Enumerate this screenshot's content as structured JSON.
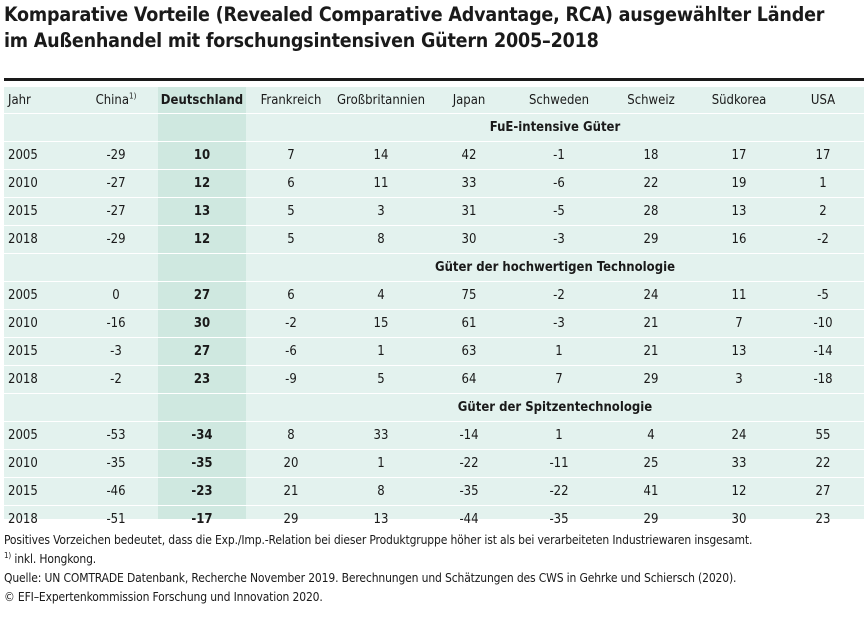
{
  "title": {
    "line1": "Komparative Vorteile (Revealed Comparative Advantage, RCA) ausgewählter Länder",
    "line2": "im Außenhandel mit forschungsintensiven Gütern 2005–2018"
  },
  "table": {
    "headers": {
      "year": "Jahr",
      "china": "China",
      "china_note": "1)",
      "germany": "Deutschland",
      "france": "Frankreich",
      "uk": "Großbritannien",
      "japan": "Japan",
      "sweden": "Schweden",
      "switzerland": "Schweiz",
      "korea": "Südkorea",
      "usa": "USA"
    },
    "sections": [
      {
        "label": "FuE-intensive Güter",
        "rows": [
          {
            "year": "2005",
            "china": "-29",
            "germany": "10",
            "france": "7",
            "uk": "14",
            "japan": "42",
            "sweden": "-1",
            "switzerland": "18",
            "korea": "17",
            "usa": "17"
          },
          {
            "year": "2010",
            "china": "-27",
            "germany": "12",
            "france": "6",
            "uk": "11",
            "japan": "33",
            "sweden": "-6",
            "switzerland": "22",
            "korea": "19",
            "usa": "1"
          },
          {
            "year": "2015",
            "china": "-27",
            "germany": "13",
            "france": "5",
            "uk": "3",
            "japan": "31",
            "sweden": "-5",
            "switzerland": "28",
            "korea": "13",
            "usa": "2"
          },
          {
            "year": "2018",
            "china": "-29",
            "germany": "12",
            "france": "5",
            "uk": "8",
            "japan": "30",
            "sweden": "-3",
            "switzerland": "29",
            "korea": "16",
            "usa": "-2"
          }
        ]
      },
      {
        "label": "Güter der hochwertigen Technologie",
        "rows": [
          {
            "year": "2005",
            "china": "0",
            "germany": "27",
            "france": "6",
            "uk": "4",
            "japan": "75",
            "sweden": "-2",
            "switzerland": "24",
            "korea": "11",
            "usa": "-5"
          },
          {
            "year": "2010",
            "china": "-16",
            "germany": "30",
            "france": "-2",
            "uk": "15",
            "japan": "61",
            "sweden": "-3",
            "switzerland": "21",
            "korea": "7",
            "usa": "-10"
          },
          {
            "year": "2015",
            "china": "-3",
            "germany": "27",
            "france": "-6",
            "uk": "1",
            "japan": "63",
            "sweden": "1",
            "switzerland": "21",
            "korea": "13",
            "usa": "-14"
          },
          {
            "year": "2018",
            "china": "-2",
            "germany": "23",
            "france": "-9",
            "uk": "5",
            "japan": "64",
            "sweden": "7",
            "switzerland": "29",
            "korea": "3",
            "usa": "-18"
          }
        ]
      },
      {
        "label": "Güter der Spitzentechnologie",
        "rows": [
          {
            "year": "2005",
            "china": "-53",
            "germany": "-34",
            "france": "8",
            "uk": "33",
            "japan": "-14",
            "sweden": "1",
            "switzerland": "4",
            "korea": "24",
            "usa": "55"
          },
          {
            "year": "2010",
            "china": "-35",
            "germany": "-35",
            "france": "20",
            "uk": "1",
            "japan": "-22",
            "sweden": "-11",
            "switzerland": "25",
            "korea": "33",
            "usa": "22"
          },
          {
            "year": "2015",
            "china": "-46",
            "germany": "-23",
            "france": "21",
            "uk": "8",
            "japan": "-35",
            "sweden": "-22",
            "switzerland": "41",
            "korea": "12",
            "usa": "27"
          },
          {
            "year": "2018",
            "china": "-51",
            "germany": "-17",
            "france": "29",
            "uk": "13",
            "japan": "-44",
            "sweden": "-35",
            "switzerland": "29",
            "korea": "30",
            "usa": "23"
          }
        ]
      }
    ]
  },
  "notes": {
    "line1": "Positives Vorzeichen bedeutet, dass die Exp./Imp.-Relation bei dieser Produktgruppe höher ist als bei verarbeiteten Industriewaren insgesamt.",
    "footnote_mark": "1)",
    "footnote_text": " inkl. Hongkong.",
    "source": "Quelle: UN COMTRADE Datenbank, Recherche November 2019. Berechnungen und Schätzungen des CWS in Gehrke und Schiersch (2020).",
    "copyright": "© EFI–Expertenkommission Forschung und Innovation 2020."
  }
}
